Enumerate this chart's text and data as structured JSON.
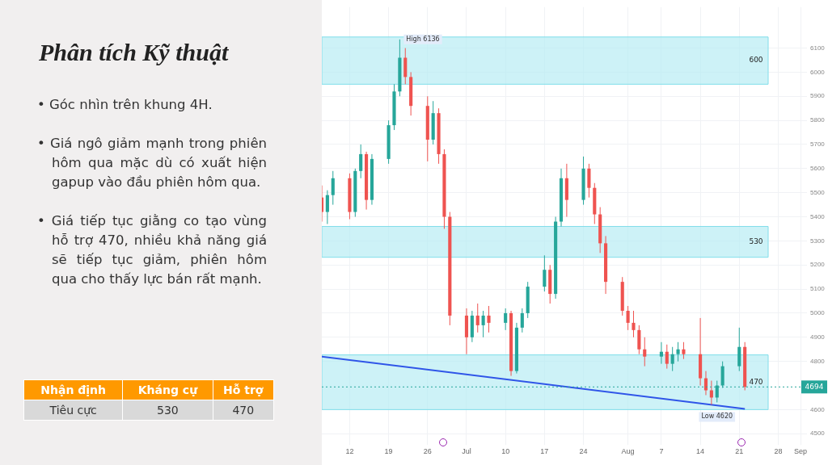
{
  "chart_data": {
    "type": "candlestick",
    "title": "Phân tích Kỹ thuật",
    "annotations": [
      "• Góc nhìn trên khung 4H.",
      "• Giá ngô giảm mạnh trong phiên hôm qua mặc dù có xuất hiện gapup vào đầu phiên hôm qua.",
      "• Giá tiếp tục giằng co tạo vùng hỗ trợ 470, nhiều khả năng giá sẽ tiếp tục giảm, phiên hôm qua cho thấy lực bán rất mạnh.",
      "Nhận định",
      "Kháng cự",
      "Hỗ trợ",
      "Tiêu cực",
      "530",
      "470",
      {
        "text": "High 6136",
        "x": "--06-21",
        "y": 6136
      },
      {
        "text": "Low 4620",
        "x": "--08-17",
        "y": 4620
      }
    ],
    "x": [
      "--06-07",
      "--06-08",
      "--06-09",
      "--06-12",
      "--06-13",
      "--06-14",
      "--06-15",
      "--06-16",
      "--06-19",
      "--06-20",
      "--06-21",
      "--06-22",
      "--06-23",
      "--06-26",
      "--06-27",
      "--06-28",
      "--06-29",
      "--06-30",
      "--07-03",
      "--07-04",
      "--07-05",
      "--07-06",
      "--07-07",
      "--07-10",
      "--07-11",
      "--07-12",
      "--07-13",
      "--07-14",
      "--07-17",
      "--07-18",
      "--07-19",
      "--07-20",
      "--07-21",
      "--07-24",
      "--07-25",
      "--07-26",
      "--07-27",
      "--07-28",
      "--07-31",
      "--08-01",
      "--08-02",
      "--08-03",
      "--08-04",
      "--08-07",
      "--08-08",
      "--08-09",
      "--08-10",
      "--08-11",
      "--08-14",
      "--08-15",
      "--08-16",
      "--08-17",
      "--08-18",
      "--08-21",
      "--08-22"
    ],
    "ohlc": [
      [
        5480,
        5530,
        5380,
        5420
      ],
      [
        5420,
        5510,
        5370,
        5490
      ],
      [
        5490,
        5590,
        5450,
        5560
      ],
      [
        5560,
        5580,
        5390,
        5420
      ],
      [
        5420,
        5600,
        5400,
        5590
      ],
      [
        5590,
        5700,
        5560,
        5660
      ],
      [
        5660,
        5670,
        5430,
        5470
      ],
      [
        5470,
        5660,
        5450,
        5640
      ],
      [
        5640,
        5800,
        5620,
        5780
      ],
      [
        5780,
        5950,
        5760,
        5920
      ],
      [
        5920,
        6136,
        5900,
        6060
      ],
      [
        6060,
        6100,
        5950,
        5980
      ],
      [
        5980,
        6000,
        5820,
        5860
      ],
      [
        5860,
        5900,
        5630,
        5720
      ],
      [
        5720,
        5880,
        5700,
        5830
      ],
      [
        5830,
        5850,
        5620,
        5660
      ],
      [
        5660,
        5680,
        5350,
        5400
      ],
      [
        5400,
        5420,
        4950,
        4990
      ],
      [
        4990,
        5020,
        4830,
        4900
      ],
      [
        4900,
        5010,
        4880,
        4990
      ],
      [
        4990,
        5040,
        4920,
        4950
      ],
      [
        4950,
        5010,
        4900,
        4990
      ],
      [
        4990,
        5030,
        4920,
        4960
      ],
      [
        4960,
        5020,
        4930,
        5000
      ],
      [
        5000,
        5010,
        4740,
        4760
      ],
      [
        4760,
        4960,
        4750,
        4940
      ],
      [
        4940,
        5020,
        4920,
        5000
      ],
      [
        5000,
        5130,
        4980,
        5110
      ],
      [
        5110,
        5240,
        5090,
        5180
      ],
      [
        5180,
        5200,
        5040,
        5080
      ],
      [
        5080,
        5400,
        5060,
        5380
      ],
      [
        5380,
        5600,
        5360,
        5560
      ],
      [
        5560,
        5620,
        5400,
        5470
      ],
      [
        5470,
        5650,
        5450,
        5600
      ],
      [
        5600,
        5620,
        5480,
        5520
      ],
      [
        5520,
        5540,
        5370,
        5410
      ],
      [
        5410,
        5440,
        5250,
        5290
      ],
      [
        5290,
        5320,
        5080,
        5130
      ],
      [
        5130,
        5150,
        4990,
        5010
      ],
      [
        5010,
        5030,
        4930,
        4960
      ],
      [
        4960,
        5010,
        4900,
        4930
      ],
      [
        4930,
        4950,
        4830,
        4850
      ],
      [
        4850,
        4900,
        4780,
        4820
      ],
      [
        4820,
        4880,
        4790,
        4840
      ],
      [
        4840,
        4870,
        4770,
        4790
      ],
      [
        4790,
        4860,
        4760,
        4830
      ],
      [
        4830,
        4880,
        4800,
        4850
      ],
      [
        4850,
        4880,
        4810,
        4830
      ],
      [
        4830,
        4980,
        4700,
        4730
      ],
      [
        4730,
        4760,
        4660,
        4680
      ],
      [
        4680,
        4720,
        4620,
        4650
      ],
      [
        4650,
        4720,
        4630,
        4700
      ],
      [
        4700,
        4800,
        4690,
        4780
      ],
      [
        4780,
        4940,
        4760,
        4860
      ],
      [
        4860,
        4880,
        4680,
        4694
      ]
    ],
    "series": [
      {
        "type": "line",
        "x": [
          "--06-07",
          "--08-22"
        ],
        "values": [
          4820,
          4603
        ],
        "color": "#2f55e8"
      }
    ],
    "bands": [
      {
        "axis": "y",
        "from": 5950,
        "to": 6146,
        "label": "600",
        "color": "#b2ebf2"
      },
      {
        "axis": "y",
        "from": 5232,
        "to": 5360,
        "label": "530",
        "color": "#b2ebf2"
      },
      {
        "axis": "y",
        "from": 4600,
        "to": 4827,
        "label": "470",
        "color": "#b2ebf2"
      }
    ],
    "ref_lines": [
      {
        "axis": "y",
        "value": 4694,
        "label": "4694",
        "color": "#26a69a",
        "line_style": "dotted"
      }
    ],
    "xlim": [
      "--06-07",
      "--09-01"
    ],
    "xticks": [
      {
        "value": "--06-12",
        "label": "12"
      },
      {
        "value": "--06-19",
        "label": "19"
      },
      {
        "value": "--06-26",
        "label": "26"
      },
      {
        "value": "--07-03",
        "label": "Jul"
      },
      {
        "value": "--07-10",
        "label": "10"
      },
      {
        "value": "--07-17",
        "label": "17"
      },
      {
        "value": "--07-24",
        "label": "24"
      },
      {
        "value": "--08-01",
        "label": "Aug"
      },
      {
        "value": "--08-07",
        "label": "7"
      },
      {
        "value": "--08-14",
        "label": "14"
      },
      {
        "value": "--08-21",
        "label": "21"
      },
      {
        "value": "--08-28",
        "label": "28"
      },
      {
        "value": "--09-01",
        "label": "Sep"
      }
    ],
    "ylim": [
      4480,
      6270
    ],
    "yticks": [
      4500,
      4600,
      4800,
      4900,
      5000,
      5100,
      5200,
      5300,
      5400,
      5500,
      5600,
      5700,
      5800,
      5900,
      6000,
      6100
    ],
    "grid": true,
    "legend": false,
    "marker": "none"
  }
}
